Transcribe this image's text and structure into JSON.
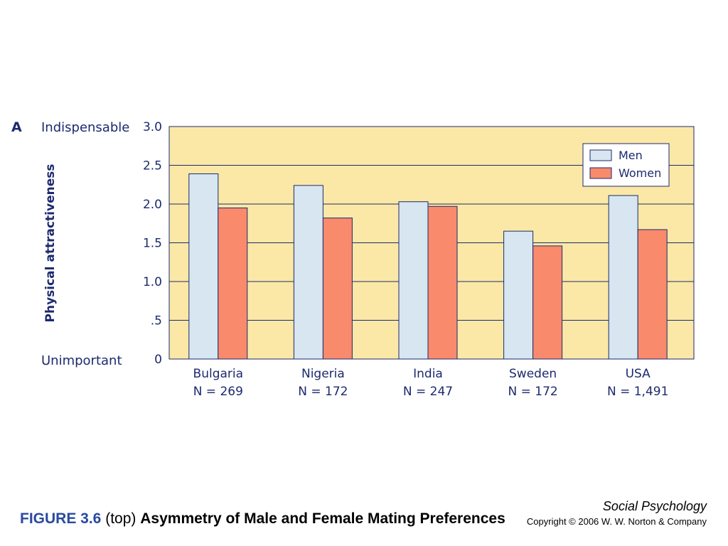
{
  "panel_label": "A",
  "chart_data": {
    "type": "bar",
    "title": "",
    "xlabel": "",
    "ylabel": "Physical attractiveness",
    "ylim": [
      0,
      3.0
    ],
    "yticks": [
      "0",
      ".5",
      "1.0",
      "1.5",
      "2.0",
      "2.5",
      "3.0"
    ],
    "y_anchor_top": "Indispensable",
    "y_anchor_bottom": "Unimportant",
    "grid": true,
    "legend_position": "top-right",
    "categories": [
      {
        "name": "Bulgaria",
        "n": "N = 269"
      },
      {
        "name": "Nigeria",
        "n": "N = 172"
      },
      {
        "name": "India",
        "n": "N = 247"
      },
      {
        "name": "Sweden",
        "n": "N = 172"
      },
      {
        "name": "USA",
        "n": "N = 1,491"
      }
    ],
    "series": [
      {
        "name": "Men",
        "color": "#d7e6f0",
        "values": [
          2.39,
          2.24,
          2.03,
          1.65,
          2.11
        ]
      },
      {
        "name": "Women",
        "color": "#f98a6c",
        "values": [
          1.95,
          1.82,
          1.97,
          1.46,
          1.67
        ]
      }
    ],
    "plot_background": "#fbe8a6",
    "axis_color": "#1c2a6e"
  },
  "caption": {
    "figure_number": "FIGURE 3.6",
    "part": "(top)",
    "title": "Asymmetry of Male and Female Mating Preferences"
  },
  "book_title": "Social Psychology",
  "copyright": "Copyright © 2006 W. W. Norton & Company"
}
